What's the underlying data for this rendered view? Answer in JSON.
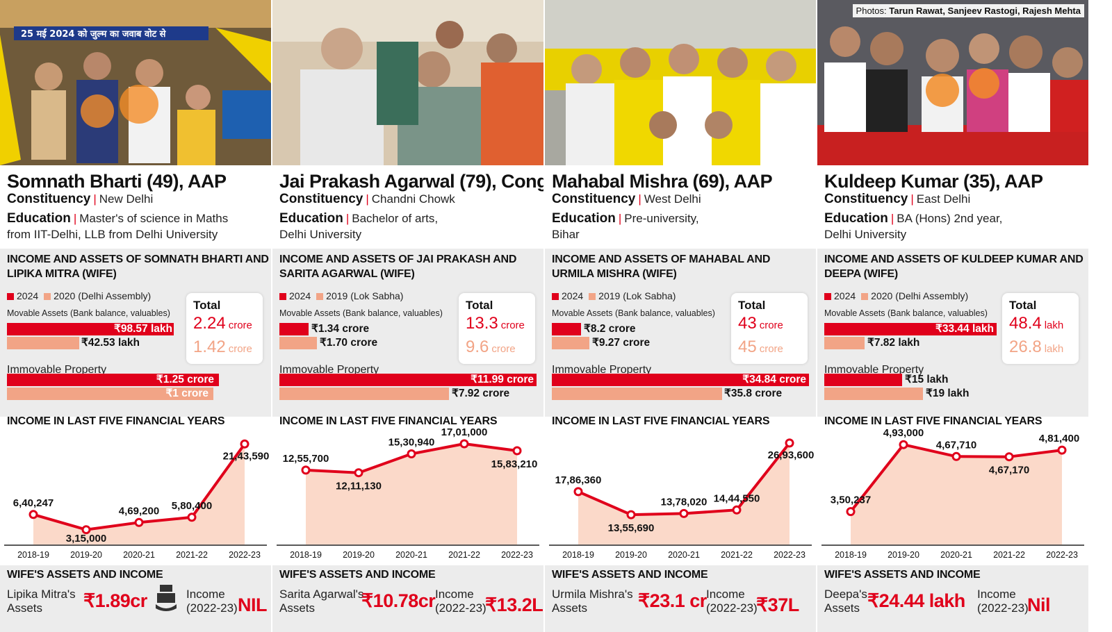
{
  "credit": {
    "label": "Photos:",
    "names": "Tarun Rawat, Sanjeev Rastogi, Rajesh Mehta"
  },
  "labels": {
    "constituency": "Constituency",
    "education": "Education",
    "movable": "Movable Assets (Bank balance, valuables)",
    "immovable": "Immovable Property",
    "total": "Total",
    "income_title": "INCOME IN LAST FIVE FINANCIAL YEARS",
    "wife_title": "WIFE'S ASSETS AND INCOME",
    "income_label_1": "Income",
    "income_label_2": "(2022-23)",
    "year_2024": "2024"
  },
  "banner_text": "25 मई 2024 को जुल्म का जवाब वोट से",
  "colors": {
    "current": "#e0001b",
    "previous": "#f2a486",
    "area": "#fbd9c9",
    "line": "#e0001b"
  },
  "chart_data": [
    {
      "type": "bar",
      "name": "Somnath Bharti (49), AAP",
      "constituency": "New Delhi",
      "education_1": "Master's of science in Maths",
      "education_2": "from IIT-Delhi, LLB from Delhi University",
      "assets_title": "INCOME AND ASSETS OF SOMNATH BHARTI AND LIPIKA MITRA (WIFE)",
      "prev_year_label": "2020 (Delhi Assembly)",
      "movable_current": {
        "value": 98.57,
        "unit": "lakh",
        "label": "₹98.57 lakh"
      },
      "movable_previous": {
        "value": 42.53,
        "unit": "lakh",
        "label": "₹42.53 lakh"
      },
      "immovable_current": {
        "value": 1.25,
        "unit": "crore",
        "label": "₹1.25 crore"
      },
      "immovable_previous": {
        "value": 1,
        "unit": "crore",
        "label": "₹1 crore"
      },
      "total_current": {
        "value": "2.24",
        "unit": "crore"
      },
      "total_previous": {
        "value": "1.42",
        "unit": "crore"
      },
      "income_years": [
        "2018-19",
        "2019-20",
        "2020-21",
        "2021-22",
        "2022-23"
      ],
      "income_values": [
        640247,
        315000,
        469200,
        580400,
        2143590
      ],
      "income_labels": [
        "6,40,247",
        "3,15,000",
        "4,69,200",
        "5,80,400",
        "21,43,590"
      ],
      "income_ylim": [
        0,
        2400000
      ],
      "wife_name_1": "Lipika Mitra's",
      "wife_name_2": "Assets",
      "wife_assets": "₹1.89cr",
      "wife_income": "NIL"
    },
    {
      "type": "bar",
      "name": "Jai Prakash Agarwal (79), Cong",
      "constituency": "Chandni Chowk",
      "education_1": "Bachelor of arts,",
      "education_2": "Delhi University",
      "assets_title": "INCOME AND ASSETS OF JAI PRAKASH AND SARITA AGARWAL (WIFE)",
      "prev_year_label": "2019 (Lok Sabha)",
      "movable_current": {
        "value": 1.34,
        "unit": "crore",
        "label": "₹1.34 crore"
      },
      "movable_previous": {
        "value": 1.7,
        "unit": "crore",
        "label": "₹1.70 crore"
      },
      "immovable_current": {
        "value": 11.99,
        "unit": "crore",
        "label": "₹11.99 crore"
      },
      "immovable_previous": {
        "value": 7.92,
        "unit": "crore",
        "label": "₹7.92 crore"
      },
      "total_current": {
        "value": "13.3",
        "unit": "crore"
      },
      "total_previous": {
        "value": "9.6",
        "unit": "crore"
      },
      "income_years": [
        "2018-19",
        "2019-20",
        "2020-21",
        "2021-22",
        "2022-23"
      ],
      "income_values": [
        1255700,
        1211130,
        1530940,
        1701000,
        1583210
      ],
      "income_labels": [
        "12,55,700",
        "12,11,130",
        "15,30,940",
        "17,01,000",
        "15,83,210"
      ],
      "income_ylim": [
        0,
        1900000
      ],
      "wife_name_1": "Sarita Agarwal's",
      "wife_name_2": "Assets",
      "wife_assets": "₹10.78cr",
      "wife_income": "₹13.2L"
    },
    {
      "type": "bar",
      "name": "Mahabal Mishra (69), AAP",
      "constituency": "West Delhi",
      "education_1": "Pre-university,",
      "education_2": "Bihar",
      "assets_title": "INCOME AND ASSETS OF MAHABAL AND URMILA MISHRA (WIFE)",
      "prev_year_label": "2019 (Lok Sabha)",
      "movable_current": {
        "value": 8.2,
        "unit": "crore",
        "label": "₹8.2 crore"
      },
      "movable_previous": {
        "value": 9.27,
        "unit": "crore",
        "label": "₹9.27 crore"
      },
      "immovable_current": {
        "value": 34.84,
        "unit": "crore",
        "label": "₹34.84 crore"
      },
      "immovable_previous": {
        "value": 35.8,
        "unit": "crore",
        "label": "₹35.8 crore"
      },
      "total_current": {
        "value": "43",
        "unit": "crore"
      },
      "total_previous": {
        "value": "45",
        "unit": "crore"
      },
      "income_years": [
        "2018-19",
        "2019-20",
        "2020-21",
        "2021-22",
        "2022-23"
      ],
      "income_values": [
        1786360,
        1355690,
        1378020,
        1444550,
        2693600
      ],
      "income_labels": [
        "17,86,360",
        "13,55,690",
        "13,78,020",
        "14,44,550",
        "26,93,600"
      ],
      "income_ylim": [
        800000,
        2900000
      ],
      "wife_name_1": "Urmila Mishra's",
      "wife_name_2": "Assets",
      "wife_assets": "₹23.1 cr",
      "wife_income": "₹37L"
    },
    {
      "type": "bar",
      "name": "Kuldeep Kumar (35), AAP",
      "constituency": "East Delhi",
      "education_1": "BA (Hons) 2nd year,",
      "education_2": "Delhi University",
      "assets_title": "INCOME AND ASSETS OF KULDEEP KUMAR AND DEEPA (WIFE)",
      "prev_year_label": "2020 (Delhi Assembly)",
      "movable_current": {
        "value": 33.44,
        "unit": "lakh",
        "label": "₹33.44 lakh"
      },
      "movable_previous": {
        "value": 7.82,
        "unit": "lakh",
        "label": "₹7.82 lakh"
      },
      "immovable_current": {
        "value": 15,
        "unit": "lakh",
        "label": "₹15 lakh"
      },
      "immovable_previous": {
        "value": 19,
        "unit": "lakh",
        "label": "₹19 lakh"
      },
      "total_current": {
        "value": "48.4",
        "unit": "lakh"
      },
      "total_previous": {
        "value": "26.8",
        "unit": "lakh"
      },
      "income_years": [
        "2018-19",
        "2019-20",
        "2020-21",
        "2021-22",
        "2022-23"
      ],
      "income_values": [
        350237,
        493000,
        467710,
        467170,
        481400
      ],
      "income_labels": [
        "3,50,237",
        "4,93,000",
        "4,67,710",
        "4,67,170",
        "4,81,400"
      ],
      "income_ylim": [
        280000,
        520000
      ],
      "wife_name_1": "Deepa's",
      "wife_name_2": "Assets",
      "wife_assets": "₹24.44 lakh",
      "wife_income": "Nil"
    }
  ]
}
